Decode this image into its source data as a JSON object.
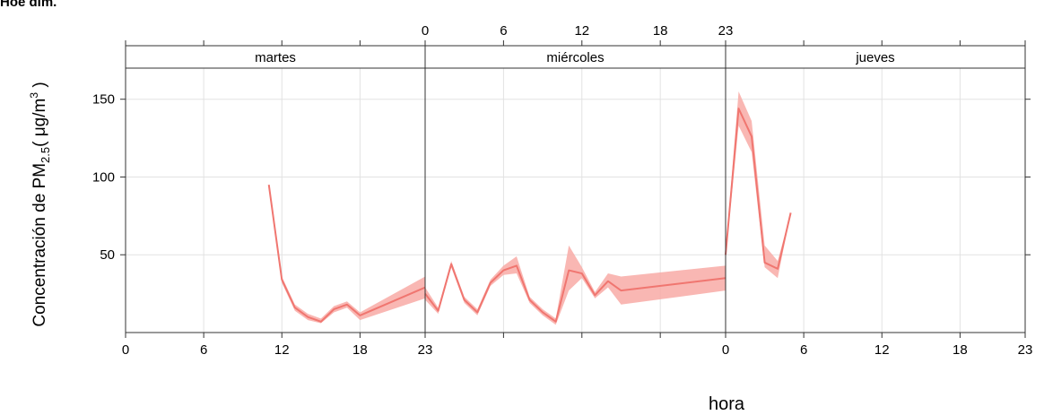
{
  "header_text": "Hoe dim.",
  "chart_data": {
    "type": "line",
    "xlabel": "hora",
    "ylabel": "Concentración de PM",
    "ylabel_sub": "2.5",
    "ylabel_units_open": "( μg/m",
    "ylabel_units_sup": "3",
    "ylabel_units_close": " )",
    "ylim": [
      0,
      170
    ],
    "xlim": [
      0,
      23
    ],
    "y_ticks": [
      50,
      100,
      150
    ],
    "x_tick_values": [
      0,
      6,
      12,
      18,
      23
    ],
    "x_tick_labels": [
      "0",
      "6",
      "12",
      "18",
      "23"
    ],
    "grid": true,
    "line_color": "#f07670",
    "band_color": "#f8aaa6",
    "panel_line_color": "#333333",
    "grid_color": "#e2e2e2",
    "panels": [
      {
        "name": "martes",
        "x_labels_position": "bottom",
        "series": [
          {
            "x": 11,
            "y": 95,
            "lo": 95,
            "hi": 95
          },
          {
            "x": 12,
            "y": 34,
            "lo": 32,
            "hi": 36
          },
          {
            "x": 13,
            "y": 16,
            "lo": 14,
            "hi": 18
          },
          {
            "x": 14,
            "y": 10,
            "lo": 8,
            "hi": 12
          },
          {
            "x": 15,
            "y": 7,
            "lo": 6,
            "hi": 9
          },
          {
            "x": 16,
            "y": 15,
            "lo": 13,
            "hi": 17
          },
          {
            "x": 17,
            "y": 18,
            "lo": 16,
            "hi": 20
          },
          {
            "x": 18,
            "y": 11,
            "lo": 8,
            "hi": 13
          },
          {
            "x": 23,
            "y": 29,
            "lo": 22,
            "hi": 36
          }
        ]
      },
      {
        "name": "miércoles",
        "x_labels_position": "top",
        "series": [
          {
            "x": 0,
            "y": 25,
            "lo": 21,
            "hi": 29
          },
          {
            "x": 1,
            "y": 14,
            "lo": 12,
            "hi": 16
          },
          {
            "x": 2,
            "y": 44,
            "lo": 42,
            "hi": 46
          },
          {
            "x": 3,
            "y": 21,
            "lo": 19,
            "hi": 23
          },
          {
            "x": 4,
            "y": 13,
            "lo": 11,
            "hi": 15
          },
          {
            "x": 5,
            "y": 32,
            "lo": 30,
            "hi": 34
          },
          {
            "x": 6,
            "y": 40,
            "lo": 37,
            "hi": 43
          },
          {
            "x": 7,
            "y": 43,
            "lo": 38,
            "hi": 49
          },
          {
            "x": 8,
            "y": 21,
            "lo": 19,
            "hi": 23
          },
          {
            "x": 9,
            "y": 13,
            "lo": 11,
            "hi": 15
          },
          {
            "x": 10,
            "y": 7,
            "lo": 5,
            "hi": 9
          },
          {
            "x": 11,
            "y": 40,
            "lo": 27,
            "hi": 56
          },
          {
            "x": 12,
            "y": 38,
            "lo": 35,
            "hi": 42
          },
          {
            "x": 13,
            "y": 24,
            "lo": 22,
            "hi": 26
          },
          {
            "x": 14,
            "y": 33,
            "lo": 29,
            "hi": 38
          },
          {
            "x": 15,
            "y": 27,
            "lo": 18,
            "hi": 36
          },
          {
            "x": 23,
            "y": 35,
            "lo": 27,
            "hi": 43
          }
        ]
      },
      {
        "name": "jueves",
        "x_labels_position": "bottom",
        "series": [
          {
            "x": 0,
            "y": 50,
            "lo": 48,
            "hi": 52
          },
          {
            "x": 1,
            "y": 144,
            "lo": 133,
            "hi": 155
          },
          {
            "x": 2,
            "y": 126,
            "lo": 116,
            "hi": 136
          },
          {
            "x": 3,
            "y": 45,
            "lo": 42,
            "hi": 56
          },
          {
            "x": 4,
            "y": 41,
            "lo": 35,
            "hi": 46
          },
          {
            "x": 5,
            "y": 77,
            "lo": 77,
            "hi": 77
          }
        ]
      }
    ]
  }
}
